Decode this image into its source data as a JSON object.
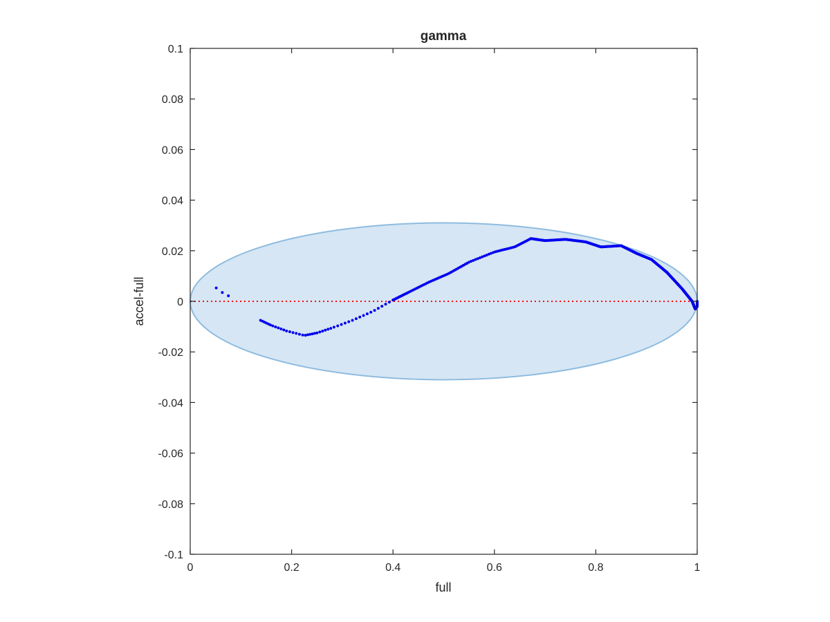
{
  "chart_data": {
    "type": "scatter",
    "title": "gamma",
    "xlabel": "full",
    "ylabel": "accel-full",
    "xlim": [
      0,
      1
    ],
    "ylim": [
      -0.1,
      0.1
    ],
    "x_ticks": [
      0,
      0.2,
      0.4,
      0.6,
      0.8,
      1
    ],
    "x_tick_labels": [
      "0",
      "0.2",
      "0.4",
      "0.6",
      "0.8",
      "1"
    ],
    "y_ticks": [
      -0.1,
      -0.08,
      -0.06,
      -0.04,
      -0.02,
      0,
      0.02,
      0.04,
      0.06,
      0.08,
      0.1
    ],
    "y_tick_labels": [
      "-0.1",
      "-0.08",
      "-0.06",
      "-0.04",
      "-0.02",
      "0",
      "0.02",
      "0.04",
      "0.06",
      "0.08",
      "0.1"
    ],
    "grid": false,
    "legend": "none",
    "reference_line": {
      "y": 0,
      "style": "dotted",
      "color": "#ff0000"
    },
    "ellipse": {
      "center_x": 0.5,
      "center_y": 0,
      "radius_x": 0.5,
      "radius_y": 0.031,
      "fill": "#d6e6f4",
      "stroke": "#8dbbdf"
    },
    "series_color": "#0000ee",
    "curve_anchors": [
      [
        0.0513,
        0.0053
      ],
      [
        0.0633,
        0.0035
      ],
      [
        0.0753,
        0.0022
      ],
      [
        0.1387,
        -0.0075
      ],
      [
        0.16,
        -0.0095
      ],
      [
        0.19,
        -0.0117
      ],
      [
        0.225,
        -0.0135
      ],
      [
        0.25,
        -0.0125
      ],
      [
        0.28,
        -0.0105
      ],
      [
        0.32,
        -0.0075
      ],
      [
        0.36,
        -0.004
      ],
      [
        0.4,
        0.0005
      ],
      [
        0.43,
        0.0035
      ],
      [
        0.47,
        0.0075
      ],
      [
        0.51,
        0.011
      ],
      [
        0.55,
        0.0155
      ],
      [
        0.6,
        0.0195
      ],
      [
        0.64,
        0.0215
      ],
      [
        0.672,
        0.0248
      ],
      [
        0.7,
        0.024
      ],
      [
        0.74,
        0.0245
      ],
      [
        0.78,
        0.0235
      ],
      [
        0.81,
        0.0215
      ],
      [
        0.85,
        0.022
      ],
      [
        0.88,
        0.019
      ],
      [
        0.91,
        0.0165
      ],
      [
        0.94,
        0.0115
      ],
      [
        0.97,
        0.005
      ],
      [
        0.99,
        0.0
      ],
      [
        0.996,
        -0.003
      ],
      [
        1.0,
        -0.002
      ],
      [
        1.0,
        0.0
      ]
    ],
    "segments": [
      {
        "from": 0,
        "to": 2,
        "points": 3
      },
      {
        "from": 3,
        "to": 11,
        "points": 45
      },
      {
        "from": 11,
        "to": 18,
        "points": 80
      },
      {
        "from": 18,
        "to": 26,
        "points": 220
      },
      {
        "from": 26,
        "to": 31,
        "points": 160
      }
    ]
  }
}
